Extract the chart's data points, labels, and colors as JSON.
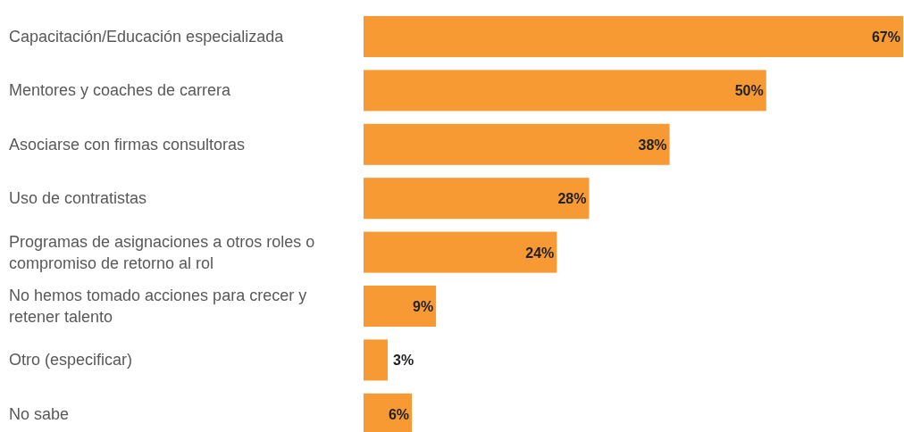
{
  "chart_data": {
    "type": "bar",
    "orientation": "horizontal",
    "value_labels": [
      "67%",
      "50%",
      "38%",
      "28%",
      "24%",
      "9%",
      "3%",
      "6%"
    ],
    "color": "#f79a33",
    "categories": [
      "Capacitación/Educación especializada",
      "Mentores y coaches de carrera",
      "Asociarse con firmas consultoras",
      "Uso de contratistas",
      "Programas de asignaciones a otros roles o compromiso de retorno al rol",
      "No hemos tomado acciones para crecer y retener talento",
      "Otro (especificar)",
      "No sabe"
    ],
    "values": [
      67,
      50,
      38,
      28,
      24,
      9,
      3,
      6
    ]
  }
}
